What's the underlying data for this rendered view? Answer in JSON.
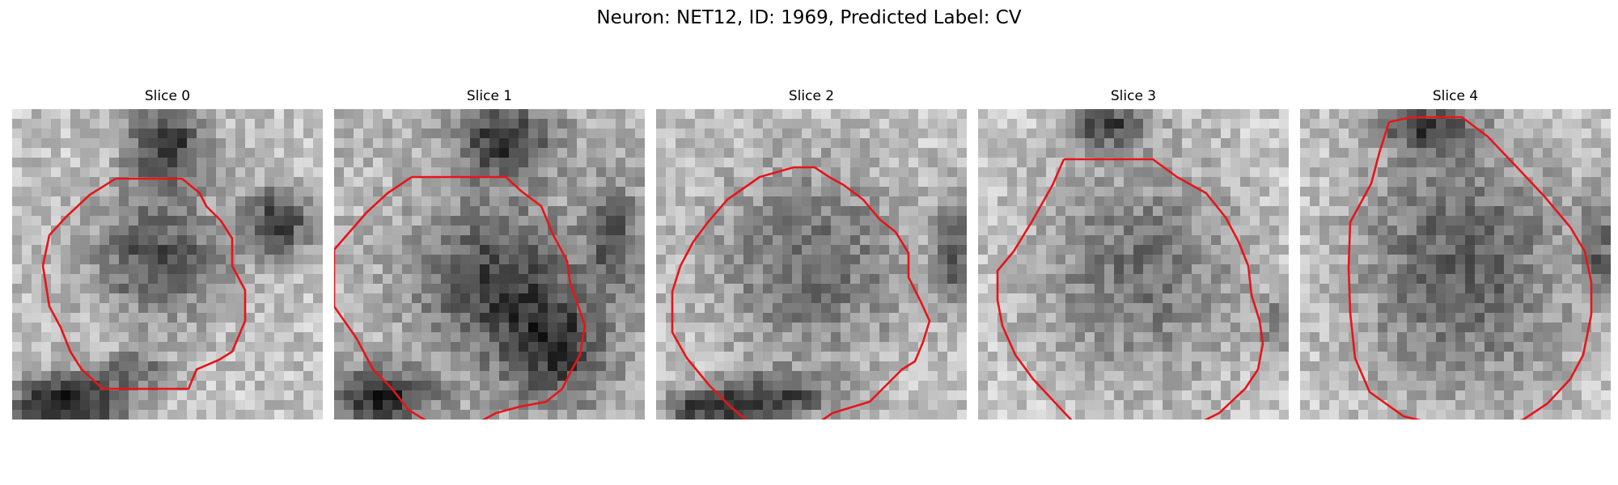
{
  "figure": {
    "title": "Neuron: NET12, ID: 1969, Predicted Label: CV"
  },
  "slices": [
    {
      "label": "Slice 0",
      "image": "grayscale-em-patch",
      "overlay": "red-contour"
    },
    {
      "label": "Slice 1",
      "image": "grayscale-em-patch",
      "overlay": "red-contour"
    },
    {
      "label": "Slice 2",
      "image": "grayscale-em-patch",
      "overlay": "red-contour"
    },
    {
      "label": "Slice 3",
      "image": "grayscale-em-patch",
      "overlay": "red-contour"
    },
    {
      "label": "Slice 4",
      "image": "grayscale-em-patch",
      "overlay": "red-contour"
    }
  ],
  "colors": {
    "contour": "#e8141a",
    "background": "#ffffff"
  }
}
